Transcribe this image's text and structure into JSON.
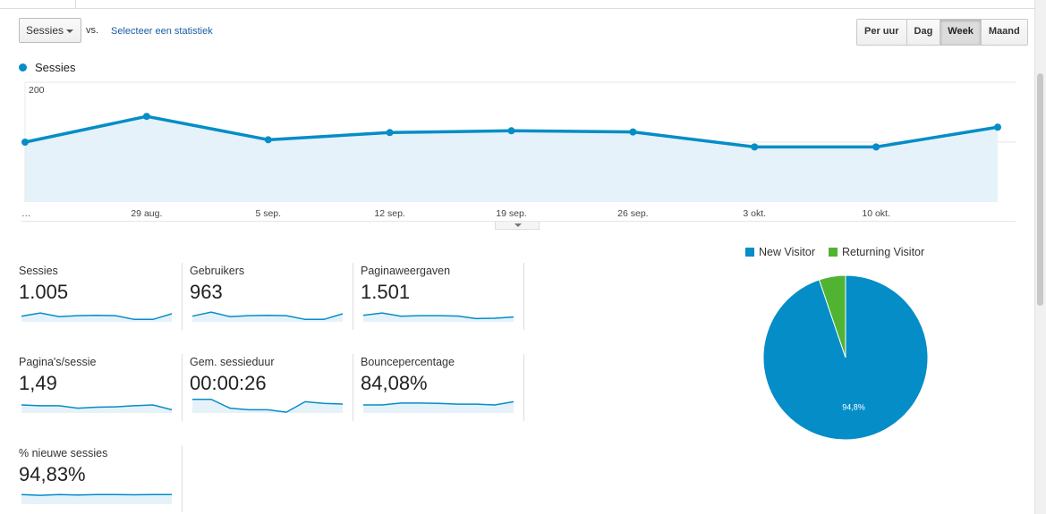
{
  "controls": {
    "metric_select": "Sessies",
    "vs_label": "vs.",
    "select_stat_link": "Selecteer een statistiek",
    "granularity": [
      "Per uur",
      "Dag",
      "Week",
      "Maand"
    ],
    "granularity_active": "Week"
  },
  "legend": {
    "series_label": "Sessies"
  },
  "colors": {
    "series": "#058dc7",
    "area": "#e6f2f9",
    "returning": "#50b432",
    "grid": "#e5e5e5"
  },
  "chart_data": [
    {
      "type": "area",
      "series": [
        {
          "name": "Sessies",
          "values": [
            100,
            143,
            104,
            116,
            119,
            117,
            92,
            92,
            125
          ]
        }
      ],
      "x": [
        "…",
        "29 aug.",
        "5 sep.",
        "12 sep.",
        "19 sep.",
        "26 sep.",
        "3 okt.",
        "10 okt.",
        ""
      ],
      "x_tick_labels": [
        "…",
        "29 aug.",
        "5 sep.",
        "12 sep.",
        "19 sep.",
        "26 sep.",
        "3 okt.",
        "10 okt."
      ],
      "y_ticks": [
        200,
        100
      ],
      "ylim": [
        0,
        200
      ],
      "grid": true
    },
    {
      "type": "pie",
      "categories": [
        "New Visitor",
        "Returning Visitor"
      ],
      "values": [
        94.8,
        5.2
      ],
      "data_labels": [
        "94,8%",
        ""
      ]
    }
  ],
  "scorecards": [
    {
      "label": "Sessies",
      "value": "1.005",
      "spark": [
        0.35,
        0.55,
        0.32,
        0.38,
        0.4,
        0.38,
        0.15,
        0.15,
        0.5
      ]
    },
    {
      "label": "Gebruikers",
      "value": "963",
      "spark": [
        0.35,
        0.6,
        0.32,
        0.38,
        0.4,
        0.38,
        0.15,
        0.15,
        0.5
      ]
    },
    {
      "label": "Paginaweergaven",
      "value": "1.501",
      "spark": [
        0.4,
        0.55,
        0.35,
        0.38,
        0.38,
        0.36,
        0.2,
        0.22,
        0.3
      ]
    },
    {
      "label": "Pagina's/sessie",
      "value": "1,49",
      "spark": [
        0.5,
        0.45,
        0.45,
        0.3,
        0.36,
        0.38,
        0.45,
        0.5,
        0.2
      ]
    },
    {
      "label": "Gem. sessieduur",
      "value": "00:00:26",
      "spark": [
        0.85,
        0.85,
        0.3,
        0.2,
        0.2,
        0.05,
        0.7,
        0.6,
        0.55
      ]
    },
    {
      "label": "Bouncepercentage",
      "value": "84,08%",
      "spark": [
        0.5,
        0.5,
        0.62,
        0.62,
        0.6,
        0.55,
        0.55,
        0.5,
        0.7
      ]
    },
    {
      "label": "% nieuwe sessies",
      "value": "94,83%",
      "spark": [
        0.6,
        0.55,
        0.6,
        0.57,
        0.6,
        0.6,
        0.58,
        0.6,
        0.6
      ]
    }
  ]
}
